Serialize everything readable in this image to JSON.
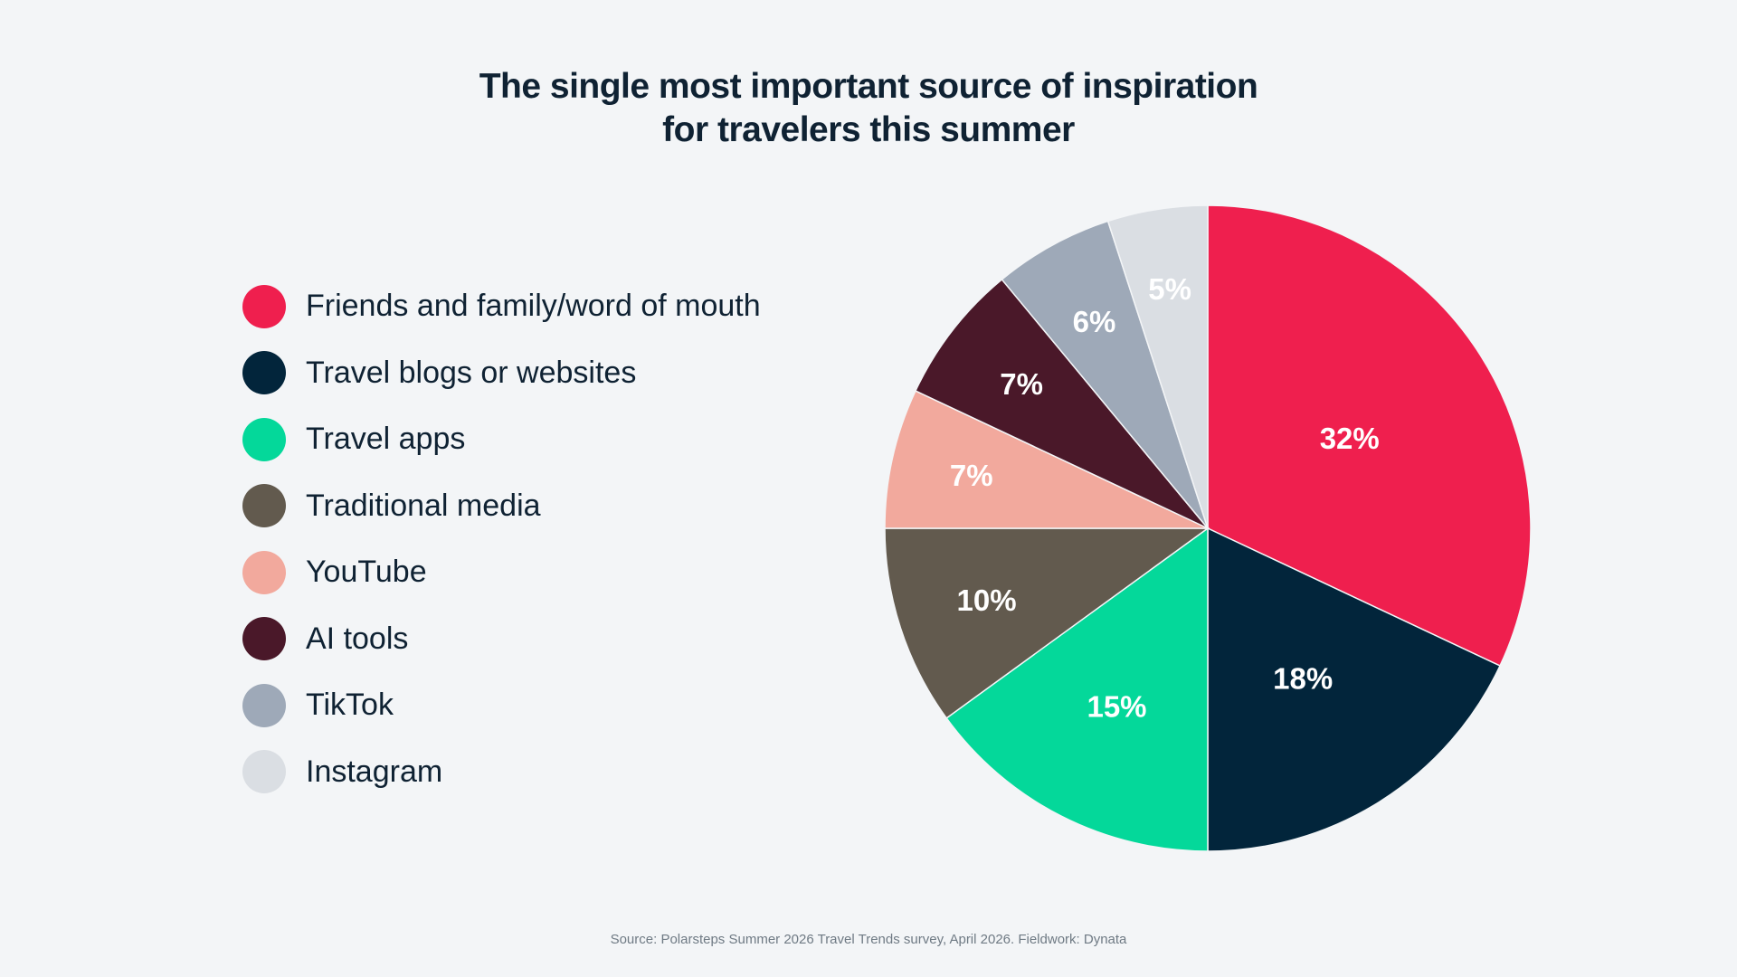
{
  "title": {
    "line1": "The single most important source of inspiration",
    "line2": "for travelers this summer"
  },
  "source": "Source: Polarsteps Summer 2026 Travel Trends survey, April 2026. Fieldwork: Dynata",
  "chart_data": {
    "type": "pie",
    "title": "The single most important source of inspiration for travelers this summer",
    "legend_position": "left",
    "start_angle": "12 o'clock",
    "direction": "clockwise",
    "slices": [
      {
        "label": "Friends and family/word of mouth",
        "value": 32,
        "value_label": "32%",
        "color": "#ef1f4e"
      },
      {
        "label": "Travel blogs or websites",
        "value": 18,
        "value_label": "18%",
        "color": "#02253b"
      },
      {
        "label": "Travel apps",
        "value": 15,
        "value_label": "15%",
        "color": "#04d89a"
      },
      {
        "label": "Traditional media",
        "value": 10,
        "value_label": "10%",
        "color": "#625a4e"
      },
      {
        "label": "YouTube",
        "value": 7,
        "value_label": "7%",
        "color": "#f2a99d"
      },
      {
        "label": "AI tools",
        "value": 7,
        "value_label": "7%",
        "color": "#4a1829"
      },
      {
        "label": "TikTok",
        "value": 6,
        "value_label": "6%",
        "color": "#9ea9b8"
      },
      {
        "label": "Instagram",
        "value": 5,
        "value_label": "5%",
        "color": "#dadee3"
      }
    ]
  }
}
